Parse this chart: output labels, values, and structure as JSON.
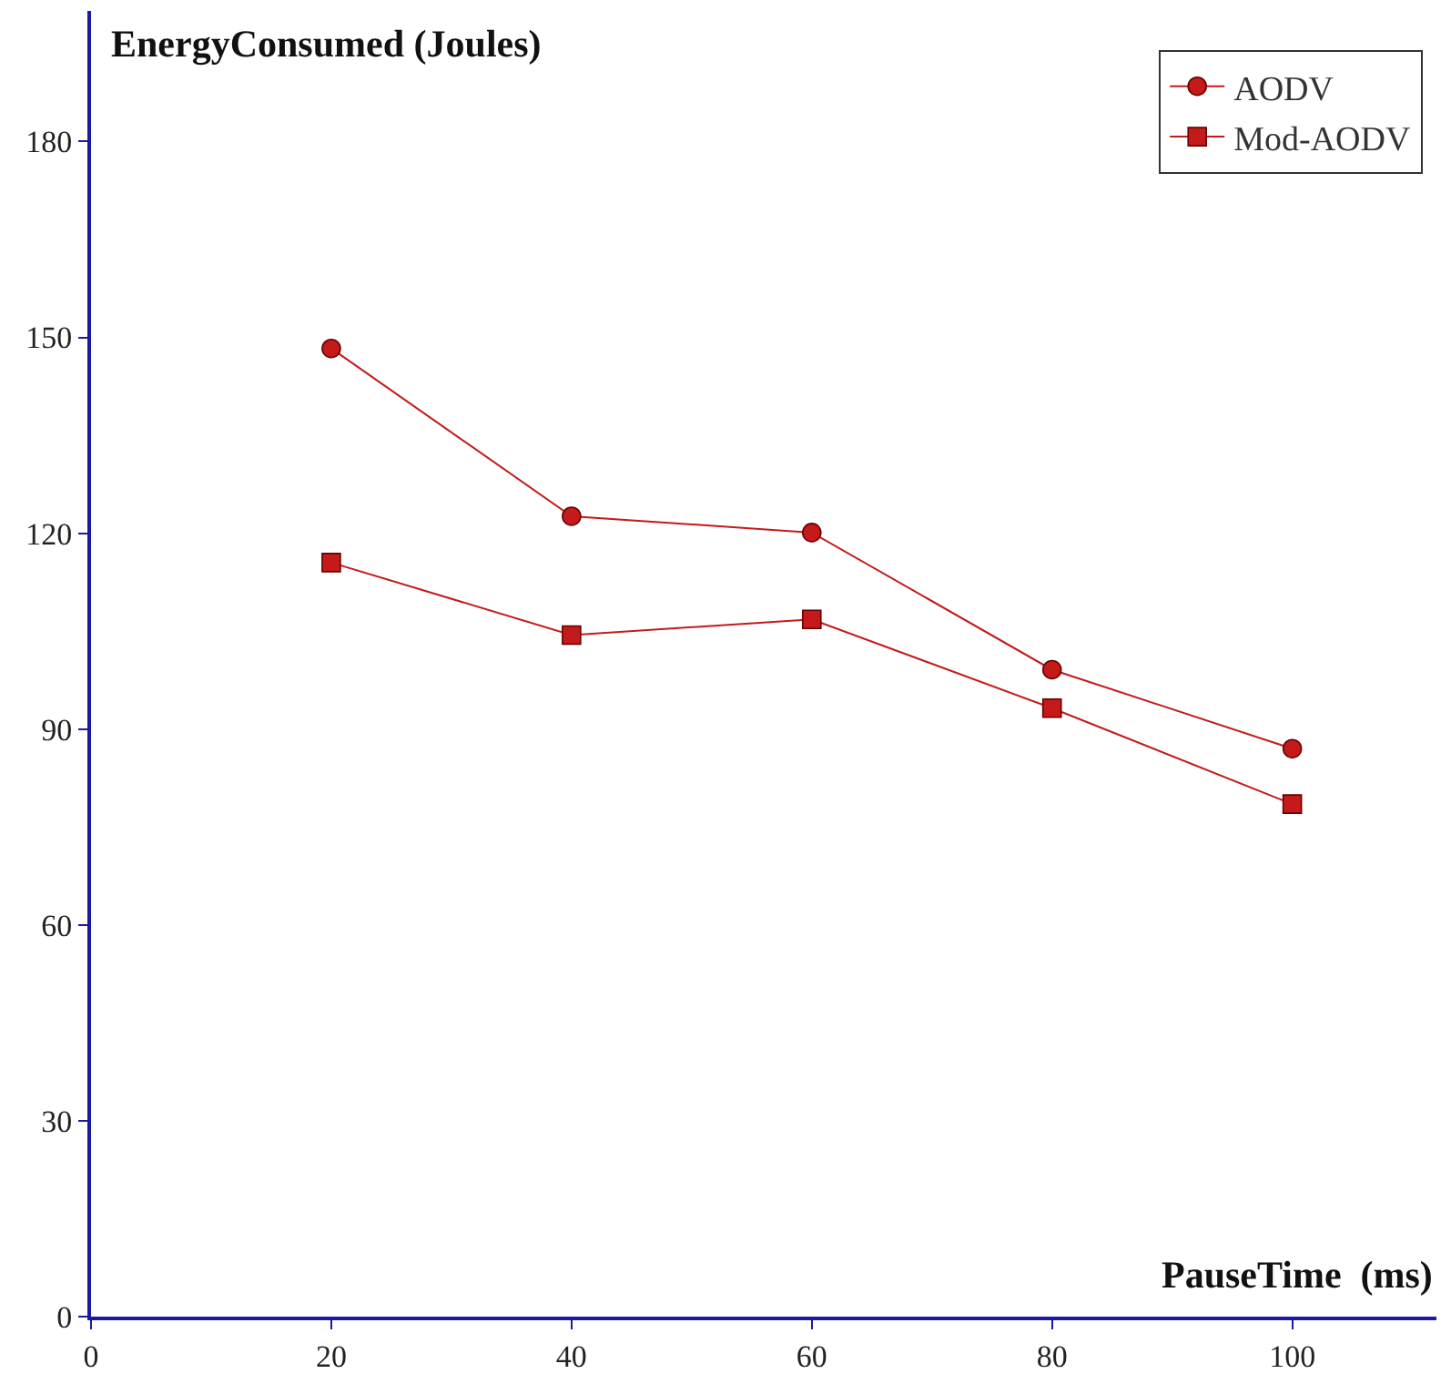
{
  "chart_data": {
    "type": "line",
    "xlabel": "PauseTime  (ms)",
    "ylabel": "EnergyConsumed (Joules)",
    "x": [
      20,
      40,
      60,
      80,
      100
    ],
    "series": [
      {
        "name": "AODV",
        "color": "#c41a1a",
        "values": [
          148.3,
          122.6,
          120.1,
          99.1,
          87.0
        ],
        "marker": "circle"
      },
      {
        "name": "Mod-AODV",
        "color": "#c41a1a",
        "values": [
          115.5,
          104.4,
          106.8,
          93.2,
          78.5
        ],
        "marker": "square"
      }
    ],
    "xlim": [
      0,
      112
    ],
    "ylim": [
      0,
      200
    ],
    "xticks": [
      0,
      20,
      40,
      60,
      80,
      100
    ],
    "yticks": [
      0,
      30,
      60,
      90,
      120,
      150,
      180
    ],
    "legend": "top right",
    "line_style": "solid"
  }
}
